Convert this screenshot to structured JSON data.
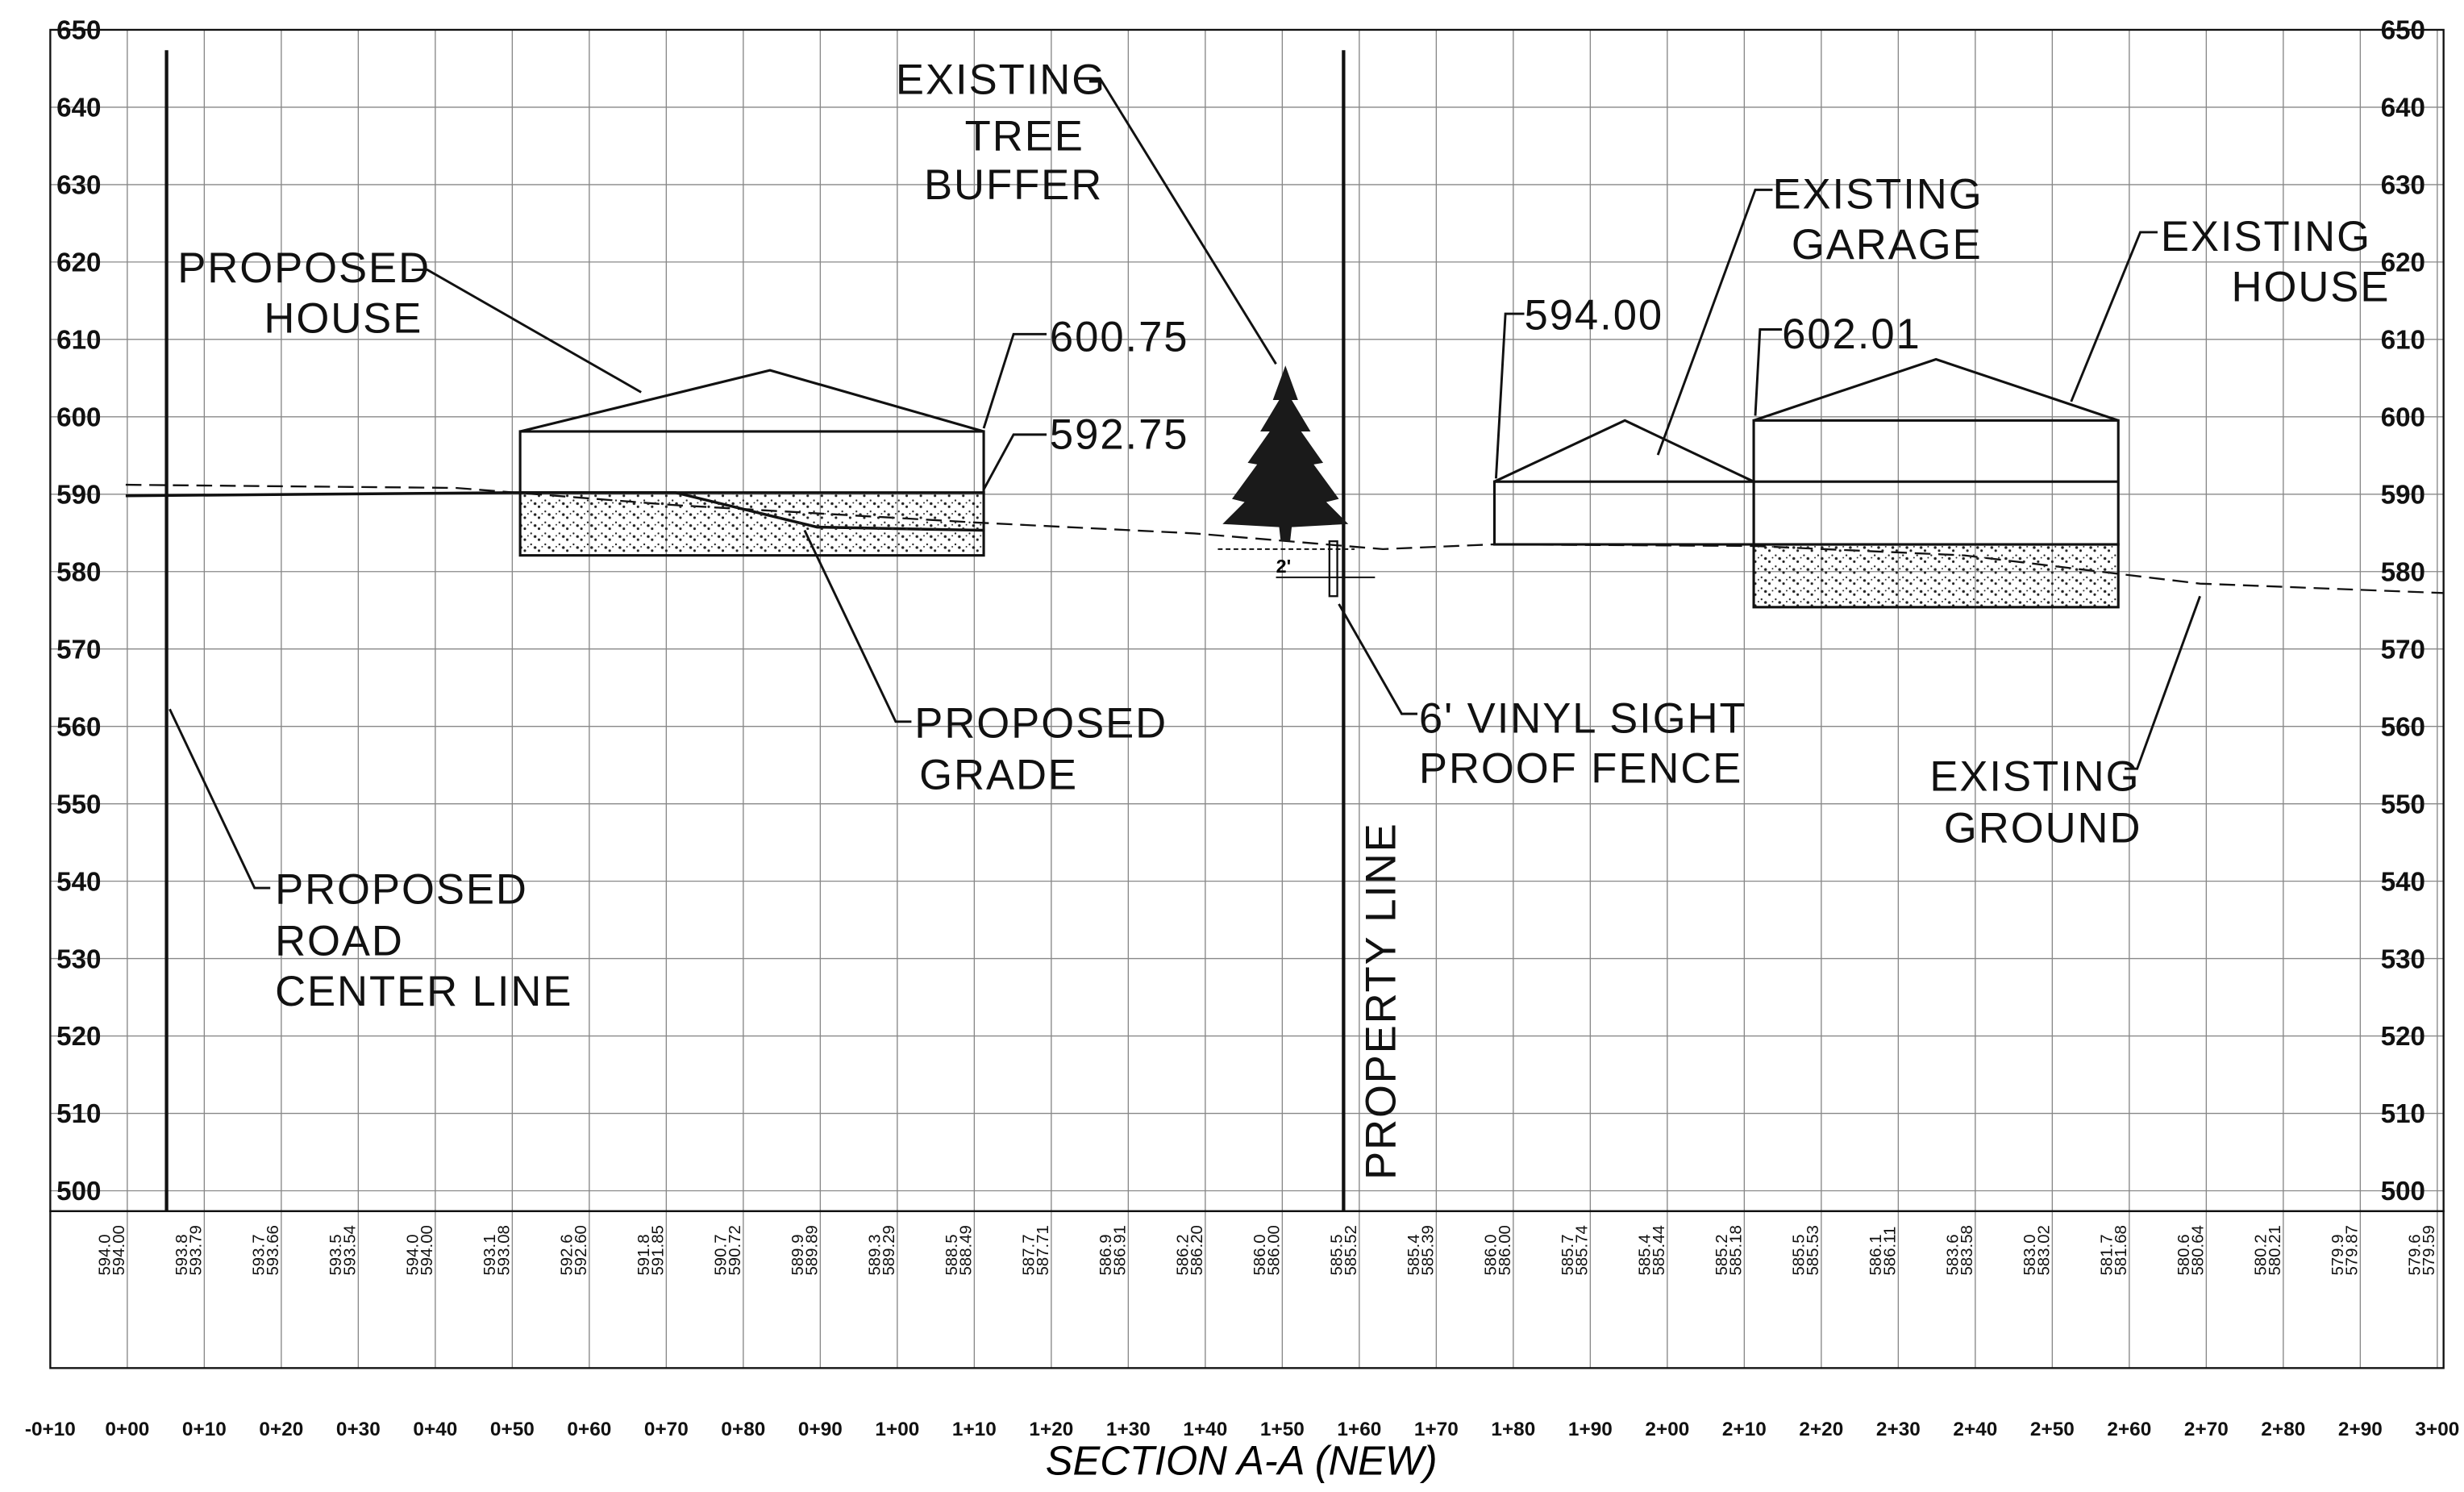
{
  "title": "SECTION A-A (NEW)",
  "elevations": [
    650,
    640,
    630,
    620,
    610,
    600,
    590,
    580,
    570,
    560,
    550,
    540,
    530,
    520,
    510,
    500
  ],
  "stations": [
    "-0+10",
    "0+00",
    "0+10",
    "0+20",
    "0+30",
    "0+40",
    "0+50",
    "0+60",
    "0+70",
    "0+80",
    "0+90",
    "1+00",
    "1+10",
    "1+20",
    "1+30",
    "1+40",
    "1+50",
    "1+60",
    "1+70",
    "1+80",
    "1+90",
    "2+00",
    "2+10",
    "2+20",
    "2+30",
    "2+40",
    "2+50",
    "2+60",
    "2+70",
    "2+80",
    "2+90",
    "3+00"
  ],
  "table": [
    [
      "594.0",
      "594.00"
    ],
    [
      "593.8",
      "593.79"
    ],
    [
      "593.7",
      "593.66"
    ],
    [
      "593.5",
      "593.54"
    ],
    [
      "594.0",
      "594.00"
    ],
    [
      "593.1",
      "593.08"
    ],
    [
      "592.6",
      "592.60"
    ],
    [
      "591.8",
      "591.85"
    ],
    [
      "590.7",
      "590.72"
    ],
    [
      "589.9",
      "589.89"
    ],
    [
      "589.3",
      "589.29"
    ],
    [
      "588.5",
      "588.49"
    ],
    [
      "587.7",
      "587.71"
    ],
    [
      "586.9",
      "586.91"
    ],
    [
      "586.2",
      "586.20"
    ],
    [
      "586.0",
      "586.00"
    ],
    [
      "585.5",
      "585.52"
    ],
    [
      "585.4",
      "585.39"
    ],
    [
      "586.0",
      "586.00"
    ],
    [
      "585.7",
      "585.74"
    ],
    [
      "585.4",
      "585.44"
    ],
    [
      "585.2",
      "585.18"
    ],
    [
      "585.5",
      "585.53"
    ],
    [
      "586.1",
      "586.11"
    ],
    [
      "583.6",
      "583.58"
    ],
    [
      "583.0",
      "583.02"
    ],
    [
      "581.7",
      "581.68"
    ],
    [
      "580.6",
      "580.64"
    ],
    [
      "580.2",
      "580.21"
    ],
    [
      "579.9",
      "579.87"
    ],
    [
      "579.6",
      "579.59"
    ]
  ],
  "annotations": {
    "tree": [
      "EXISTING",
      "TREE",
      "BUFFER"
    ],
    "proposed_house": [
      "PROPOSED",
      "HOUSE"
    ],
    "house_top": "600.75",
    "house_floor": "592.75",
    "garage": [
      "EXISTING",
      "GARAGE"
    ],
    "garage_floor": "594.00",
    "existing_house_floor": "602.01",
    "existing_house": [
      "EXISTING",
      "HOUSE"
    ],
    "proposed_grade": [
      "PROPOSED",
      "GRADE"
    ],
    "fence": [
      "6' VINYL SIGHT",
      "PROOF FENCE"
    ],
    "existing_ground": [
      "EXISTING",
      "GROUND"
    ],
    "road": [
      "PROPOSED",
      "ROAD",
      "CENTER LINE"
    ],
    "property_line": "PROPERTY LINE",
    "fence_offset": "2'"
  }
}
